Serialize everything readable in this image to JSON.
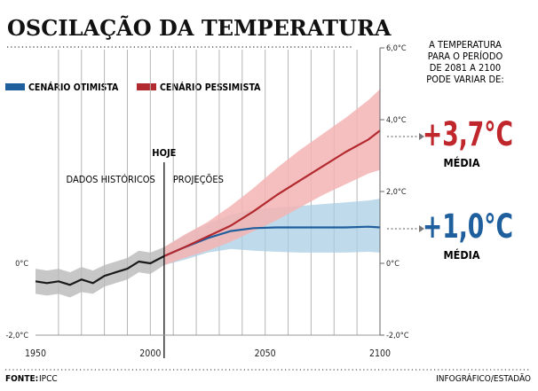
{
  "chart_data": {
    "type": "line",
    "title": "OSCILAÇÃO DA TEMPERATURA",
    "x_ticks": [
      "1950",
      "2000",
      "2050",
      "2100"
    ],
    "y_ticks": [
      "6,0°C",
      "4,0°C",
      "2,0°C",
      "0°C",
      "-2,0°C"
    ],
    "left_axis_labels": [
      "0°C",
      "-2,0°C"
    ],
    "xlim": [
      1950,
      2100
    ],
    "ylim": [
      -2,
      6
    ],
    "grid": true,
    "legend_position": "top-left",
    "annotations": {
      "today_label": "HOJE",
      "today_year": 2006,
      "historic_label": "DADOS HISTÓRICOS",
      "projection_label": "PROJEÇÕES"
    },
    "series": [
      {
        "name": "CENÁRIO OTIMISTA",
        "color": "#1f5f9e",
        "band_color": "#a9cde3",
        "x": [
          2006,
          2015,
          2025,
          2035,
          2045,
          2055,
          2065,
          2075,
          2085,
          2095,
          2100
        ],
        "values": [
          0.2,
          0.45,
          0.7,
          0.9,
          0.98,
          1.0,
          1.0,
          1.0,
          1.0,
          1.02,
          1.0
        ],
        "lower": [
          -0.05,
          0.1,
          0.3,
          0.4,
          0.35,
          0.32,
          0.3,
          0.3,
          0.3,
          0.32,
          0.3
        ],
        "upper": [
          0.45,
          0.8,
          1.1,
          1.35,
          1.5,
          1.55,
          1.6,
          1.65,
          1.7,
          1.75,
          1.8
        ]
      },
      {
        "name": "CENÁRIO PESSIMISTA",
        "color": "#b22a30",
        "band_color": "#f4b4b4",
        "x": [
          2006,
          2015,
          2025,
          2035,
          2045,
          2055,
          2065,
          2075,
          2085,
          2095,
          2100
        ],
        "values": [
          0.2,
          0.45,
          0.75,
          1.05,
          1.45,
          1.9,
          2.3,
          2.7,
          3.1,
          3.45,
          3.7
        ],
        "lower": [
          -0.05,
          0.15,
          0.35,
          0.6,
          0.9,
          1.2,
          1.55,
          1.9,
          2.2,
          2.5,
          2.6
        ],
        "upper": [
          0.45,
          0.8,
          1.15,
          1.6,
          2.1,
          2.65,
          3.15,
          3.6,
          4.05,
          4.55,
          4.85
        ]
      },
      {
        "name": "DADOS HISTÓRICOS",
        "color": "#1a1a1a",
        "band_color": "#b9b9b9",
        "x": [
          1950,
          1955,
          1960,
          1965,
          1970,
          1975,
          1980,
          1985,
          1990,
          1995,
          2000,
          2006
        ],
        "values": [
          -0.5,
          -0.55,
          -0.5,
          -0.6,
          -0.45,
          -0.55,
          -0.35,
          -0.25,
          -0.15,
          0.05,
          0.0,
          0.2
        ],
        "lower": [
          -0.85,
          -0.9,
          -0.85,
          -0.95,
          -0.8,
          -0.85,
          -0.65,
          -0.55,
          -0.45,
          -0.25,
          -0.3,
          -0.05
        ],
        "upper": [
          -0.15,
          -0.2,
          -0.15,
          -0.25,
          -0.1,
          -0.2,
          -0.05,
          0.05,
          0.15,
          0.35,
          0.3,
          0.45
        ]
      }
    ]
  },
  "side_panel": {
    "intro": [
      "A TEMPERATURA",
      "PARA O PERÍODO",
      "DE 2081 A 2100",
      "PODE VARIAR DE:"
    ],
    "pessimistic_value": "+3,7°C",
    "pessimistic_label": "MÉDIA",
    "optimistic_value": "+1,0°C",
    "optimistic_label": "MÉDIA"
  },
  "footer": {
    "source_label": "FONTE:",
    "source_value": "IPCC",
    "credit": "INFOGRÁFICO/ESTADÃO"
  }
}
